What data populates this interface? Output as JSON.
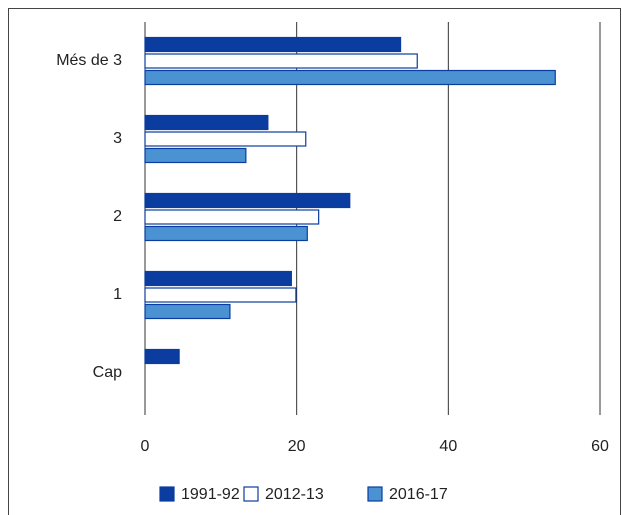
{
  "chart_data": {
    "type": "bar",
    "orientation": "horizontal",
    "categories": [
      "Més de 3",
      "3",
      "2",
      "1",
      "Cap"
    ],
    "series": [
      {
        "name": "1991-92",
        "color": "#0b3c9f",
        "values": [
          33.7,
          16.2,
          27.0,
          19.3,
          4.5
        ]
      },
      {
        "name": "2012-13",
        "color": "#ffffff",
        "values": [
          35.9,
          21.2,
          22.9,
          19.9,
          null
        ]
      },
      {
        "name": "2016-17",
        "color": "#4a92d2",
        "values": [
          54.1,
          13.3,
          21.4,
          11.2,
          null
        ]
      }
    ],
    "xlim": [
      0,
      60
    ],
    "xticks": [
      0,
      20,
      40,
      60
    ],
    "grid": true,
    "legend": "bottom"
  }
}
